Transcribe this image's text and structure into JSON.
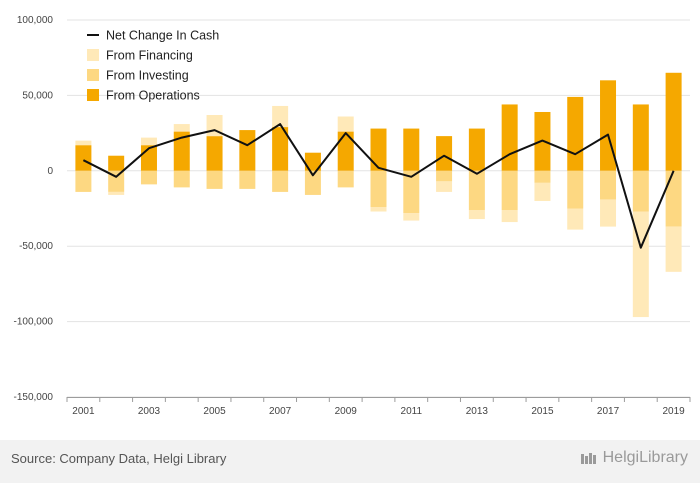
{
  "chart_data": {
    "type": "bar",
    "stacked": true,
    "years": [
      2001,
      2002,
      2003,
      2004,
      2005,
      2006,
      2007,
      2008,
      2009,
      2010,
      2011,
      2012,
      2013,
      2014,
      2015,
      2016,
      2017,
      2018,
      2019
    ],
    "x_tick_labels": [
      "2001",
      "2003",
      "2005",
      "2007",
      "2009",
      "2011",
      "2013",
      "2015",
      "2017",
      "2019"
    ],
    "y_tick_labels": [
      "100,000",
      "50,000",
      "0",
      "-50,000",
      "-100,000",
      "-150,000"
    ],
    "ylim": [
      -150000,
      100000
    ],
    "y_ticks": [
      100000,
      50000,
      0,
      -50000,
      -100000,
      -150000
    ],
    "grid": true,
    "legend_position": "top-left",
    "series": [
      {
        "name": "From Operations",
        "role": "operations",
        "color": "#f5a800",
        "values": [
          17000,
          10000,
          17000,
          26000,
          23000,
          27000,
          29000,
          12000,
          26000,
          28000,
          28000,
          23000,
          28000,
          44000,
          39000,
          49000,
          60000,
          44000,
          65000
        ]
      },
      {
        "name": "From Investing",
        "role": "investing",
        "color": "#fdd882",
        "values": [
          -14000,
          -14000,
          -9000,
          -11000,
          -12000,
          -12000,
          -14000,
          -16000,
          -11000,
          -24000,
          -28000,
          -7000,
          -26000,
          -26000,
          -8000,
          -25000,
          -19000,
          -27000,
          -37000
        ]
      },
      {
        "name": "From Financing",
        "role": "financing",
        "color": "#ffe9b8",
        "values": [
          3000,
          -2000,
          5000,
          5000,
          14000,
          0,
          14000,
          0,
          10000,
          -3000,
          -5000,
          -7000,
          -6000,
          -8000,
          -12000,
          -14000,
          -18000,
          -70000,
          -30000
        ]
      },
      {
        "name": "Net Change In Cash",
        "role": "net",
        "color": "#111111",
        "values": [
          7000,
          -4000,
          15000,
          22000,
          27000,
          17000,
          31000,
          -3000,
          25000,
          2000,
          -4000,
          10000,
          -2000,
          11000,
          20000,
          11000,
          24000,
          -51000,
          0
        ]
      }
    ]
  },
  "legend": [
    {
      "label": "Net Change In Cash",
      "kind": "line",
      "color": "#111111"
    },
    {
      "label": "From Financing",
      "kind": "box",
      "color": "#ffe9b8"
    },
    {
      "label": "From Investing",
      "kind": "box",
      "color": "#fdd882"
    },
    {
      "label": "From Operations",
      "kind": "box",
      "color": "#f5a800"
    }
  ],
  "footer": {
    "source": "Source: Company Data, Helgi Library",
    "brand": "HelgiLibrary"
  }
}
